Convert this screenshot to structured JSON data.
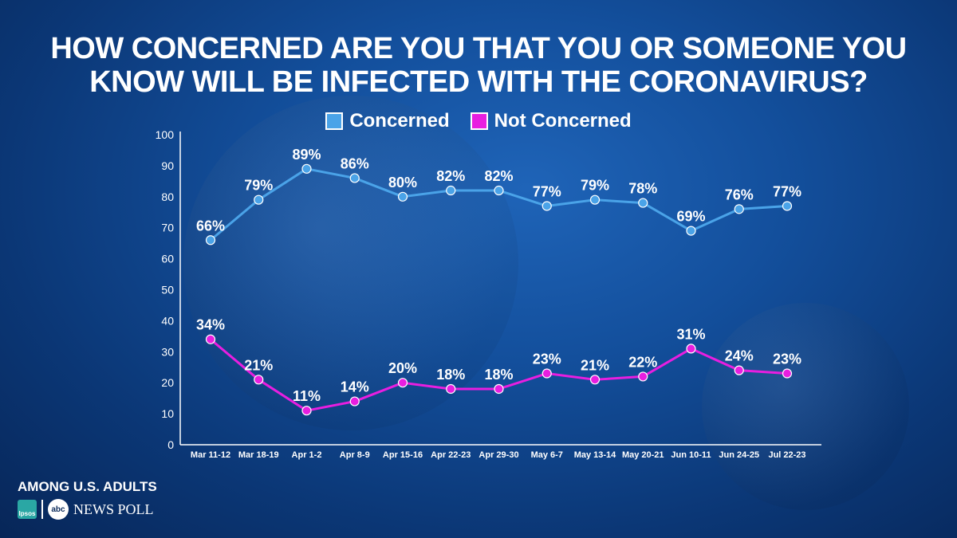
{
  "title_lines": [
    "HOW CONCERNED ARE YOU THAT YOU OR SOMEONE YOU",
    "KNOW WILL BE INFECTED WITH THE CORONAVIRUS?"
  ],
  "footer": {
    "label": "AMONG U.S. ADULTS",
    "ipsos": "Ipsos",
    "abc": "abc",
    "news_poll": "NEWS POLL"
  },
  "colors": {
    "concerned": "#4aa3e8",
    "not_concerned": "#e81ee0",
    "text": "#ffffff"
  },
  "chart_data": {
    "type": "line",
    "categories": [
      "Mar 11-12",
      "Mar 18-19",
      "Apr 1-2",
      "Apr 8-9",
      "Apr 15-16",
      "Apr 22-23",
      "Apr 29-30",
      "May 6-7",
      "May 13-14",
      "May 20-21",
      "Jun 10-11",
      "Jun 24-25",
      "Jul 22-23"
    ],
    "series": [
      {
        "name": "Concerned",
        "values": [
          66,
          79,
          89,
          86,
          80,
          82,
          82,
          77,
          79,
          78,
          69,
          76,
          77
        ],
        "labels": [
          "66%",
          "79%",
          "89%",
          "86%",
          "80%",
          "82%",
          "82%",
          "77%",
          "79%",
          "78%",
          "69%",
          "76%",
          "77%"
        ]
      },
      {
        "name": "Not Concerned",
        "values": [
          34,
          21,
          11,
          14,
          20,
          18,
          18,
          23,
          21,
          22,
          31,
          24,
          23
        ],
        "labels": [
          "34%",
          "21%",
          "11%",
          "14%",
          "20%",
          "18%",
          "18%",
          "23%",
          "21%",
          "22%",
          "31%",
          "24%",
          "23%"
        ]
      }
    ],
    "ylim": [
      0,
      100
    ],
    "yticks": [
      0,
      10,
      20,
      30,
      40,
      50,
      60,
      70,
      80,
      90,
      100
    ],
    "grid": false,
    "legend": "top-center"
  }
}
